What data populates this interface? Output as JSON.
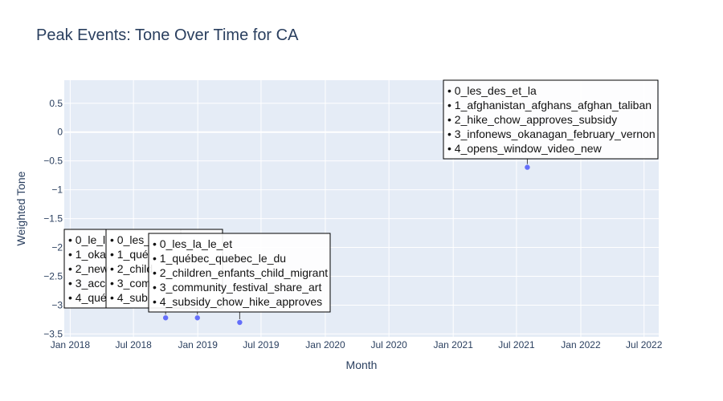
{
  "chart_data": {
    "type": "scatter",
    "title": "Peak Events: Tone Over Time for CA",
    "xlabel": "Month",
    "ylabel": "Weighted Tone",
    "x_ticks": [
      "Jan 2018",
      "Jul 2018",
      "Jan 2019",
      "Jul 2019",
      "Jan 2020",
      "Jul 2020",
      "Jan 2021",
      "Jul 2021",
      "Jan 2022",
      "Jul 2022"
    ],
    "y_ticks": [
      "0.5",
      "0",
      "−0.5",
      "−1",
      "−1.5",
      "−2",
      "−2.5",
      "−3",
      "−3.5"
    ],
    "xlim": [
      "2017-12-15",
      "2022-08-12"
    ],
    "ylim": [
      -3.55,
      0.9
    ],
    "grid": true,
    "marker_color": "#636efa",
    "plot_bg": "#e5ecf6",
    "points": [
      {
        "x": "2018-10-01",
        "y": -3.22,
        "annotation": [
          "• 0_le_l",
          "• 1_oka",
          "• 2_new",
          "• 3_acc",
          "• 4_qué"
        ]
      },
      {
        "x": "2018-12-31",
        "y": -3.22,
        "annotation": [
          "• 0_les_",
          "• 1_qué",
          "• 2_child",
          "• 3_com",
          "• 4_sub"
        ]
      },
      {
        "x": "2019-05-01",
        "y": -3.3,
        "annotation": [
          "• 0_les_la_le_et",
          "• 1_québec_quebec_le_du",
          "• 2_children_enfants_child_migrant",
          "• 3_community_festival_share_art",
          "• 4_subsidy_chow_hike_approves"
        ]
      },
      {
        "x": "2021-08-01",
        "y": -0.61,
        "annotation": [
          "• 0_les_des_et_la",
          "• 1_afghanistan_afghans_afghan_taliban",
          "• 2_hike_chow_approves_subsidy",
          "• 3_infonews_okanagan_february_vernon",
          "• 4_opens_window_video_new"
        ]
      }
    ]
  }
}
